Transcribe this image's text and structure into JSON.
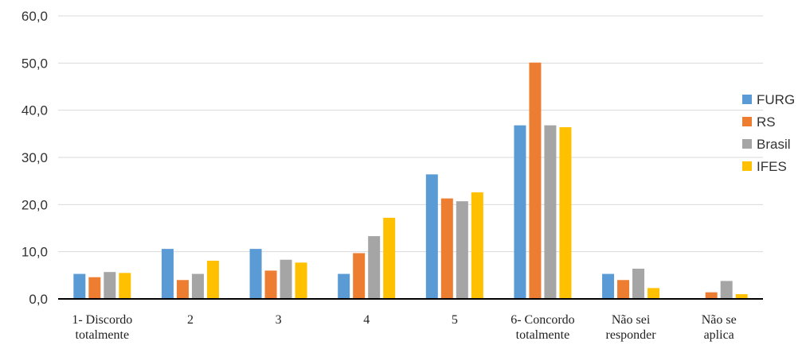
{
  "chart_data": {
    "type": "bar",
    "title": "",
    "xlabel": "",
    "ylabel": "",
    "ylim": [
      0,
      60
    ],
    "yticks": [
      0,
      10,
      20,
      30,
      40,
      50,
      60
    ],
    "ytick_labels": [
      "0,0",
      "10,0",
      "20,0",
      "30,0",
      "40,0",
      "50,0",
      "60,0"
    ],
    "grid": true,
    "legend_position": "right",
    "categories": [
      [
        "1- Discordo",
        "totalmente"
      ],
      [
        "2"
      ],
      [
        "3"
      ],
      [
        "4"
      ],
      [
        "5"
      ],
      [
        "6- Concordo",
        "totalmente"
      ],
      [
        "Não sei",
        "responder"
      ],
      [
        "Não se",
        "aplica"
      ]
    ],
    "series": [
      {
        "name": "FURG",
        "color": "#5B9BD5",
        "values": [
          5.3,
          10.6,
          10.6,
          5.3,
          26.4,
          36.8,
          5.3,
          0.0
        ]
      },
      {
        "name": "RS",
        "color": "#ED7D31",
        "values": [
          4.6,
          4.0,
          6.0,
          9.7,
          21.3,
          50.1,
          4.0,
          1.4
        ]
      },
      {
        "name": "Brasil",
        "color": "#A5A5A5",
        "values": [
          5.7,
          5.3,
          8.3,
          13.3,
          20.7,
          36.8,
          6.4,
          3.8
        ]
      },
      {
        "name": "IFES",
        "color": "#FFC000",
        "values": [
          5.5,
          8.1,
          7.7,
          17.2,
          22.6,
          36.4,
          2.3,
          1.0
        ]
      }
    ]
  }
}
